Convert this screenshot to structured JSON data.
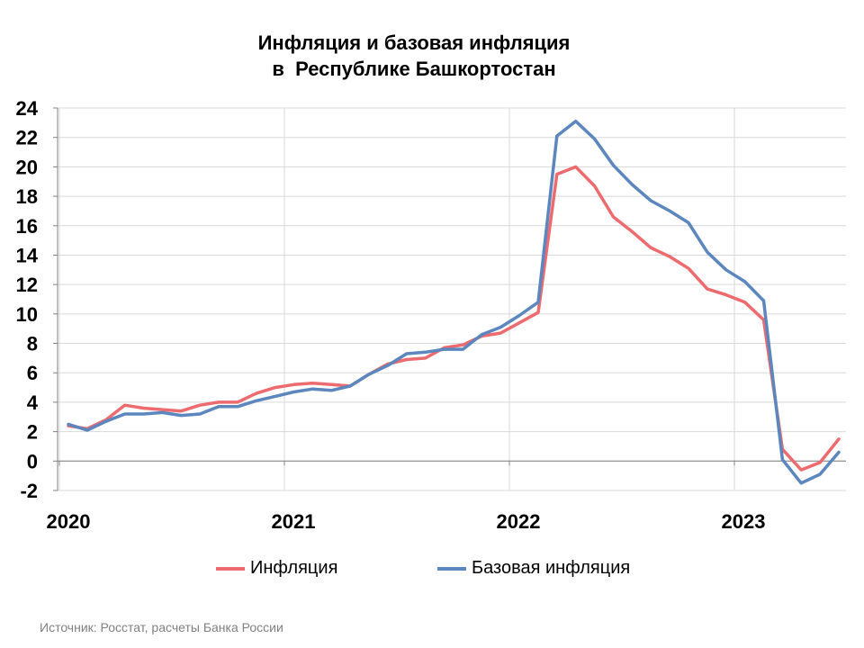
{
  "title_line1": "Инфляция и базовая инфляция",
  "title_line2": "в  Республике Башкортостан",
  "source": "Источник: Росстат, расчеты Банка России",
  "colors": {
    "inflation": "#ED6A6E",
    "core": "#5B87BE",
    "grid": "#D9D9D9",
    "axis": "#808080"
  },
  "chart_data": {
    "type": "line",
    "ylim": [
      -2,
      24
    ],
    "yticks": [
      -2,
      0,
      2,
      4,
      6,
      8,
      10,
      12,
      14,
      16,
      18,
      20,
      22,
      24
    ],
    "year_labels": [
      "2020",
      "2021",
      "2022",
      "2023"
    ],
    "grid": true,
    "legend_position": "bottom",
    "series": [
      {
        "name": "Инфляция",
        "color": "#ED6A6E",
        "values": [
          2.4,
          2.2,
          2.8,
          3.8,
          3.6,
          3.5,
          3.4,
          3.8,
          4.0,
          4.0,
          4.6,
          5.0,
          5.2,
          5.3,
          5.2,
          5.1,
          5.9,
          6.6,
          6.9,
          7.0,
          7.7,
          7.9,
          8.5,
          8.7,
          9.4,
          10.1,
          19.5,
          20.0,
          18.7,
          16.6,
          15.6,
          14.5,
          13.9,
          13.1,
          11.7,
          11.3,
          10.8,
          9.6,
          0.8,
          -0.6,
          -0.1,
          1.5
        ]
      },
      {
        "name": "Базовая инфляция",
        "color": "#5B87BE",
        "values": [
          2.5,
          2.1,
          2.7,
          3.2,
          3.2,
          3.3,
          3.1,
          3.2,
          3.7,
          3.7,
          4.1,
          4.4,
          4.7,
          4.9,
          4.8,
          5.1,
          5.9,
          6.5,
          7.3,
          7.4,
          7.6,
          7.6,
          8.6,
          9.1,
          9.9,
          10.8,
          22.1,
          23.1,
          21.9,
          20.1,
          18.8,
          17.7,
          17.0,
          16.2,
          14.2,
          13.0,
          12.2,
          10.9,
          0.1,
          -1.5,
          -0.9,
          0.6
        ]
      }
    ]
  }
}
